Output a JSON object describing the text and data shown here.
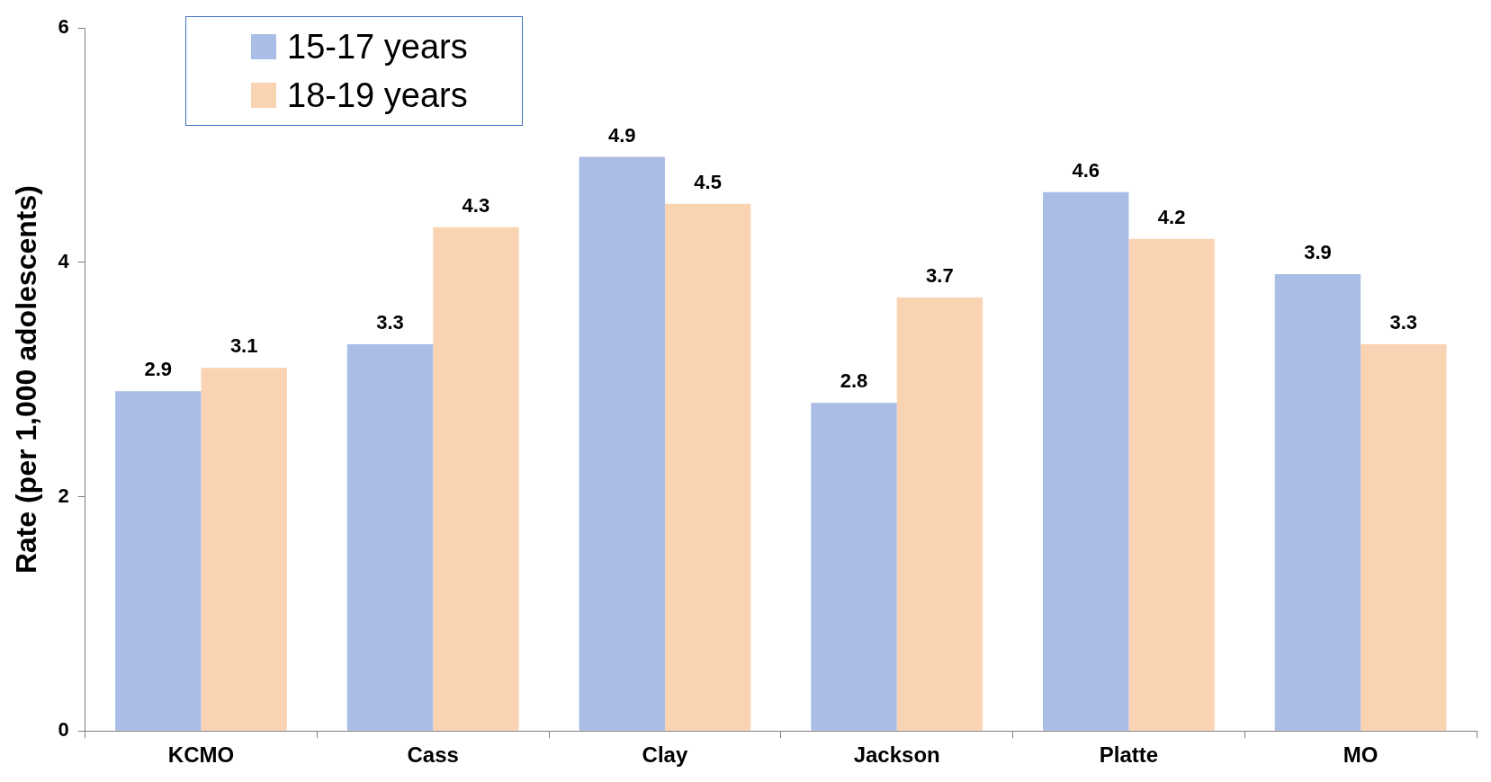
{
  "chart_data": {
    "type": "bar",
    "ylabel": "Rate (per 1,000 adolescents)",
    "categories": [
      "KCMO",
      "Cass",
      "Clay",
      "Jackson",
      "Platte",
      "MO"
    ],
    "series": [
      {
        "name": "15-17 years",
        "color": "#a9bde6",
        "values": [
          2.9,
          3.3,
          4.9,
          2.8,
          4.6,
          3.9
        ]
      },
      {
        "name": "18-19 years",
        "color": "#fad3b3",
        "values": [
          3.1,
          4.3,
          4.5,
          3.7,
          4.2,
          3.3
        ]
      }
    ],
    "ylim": [
      0,
      6
    ],
    "yticks": [
      0,
      2,
      4,
      6
    ],
    "grid": false,
    "legend": "top left",
    "data_labels": true
  }
}
